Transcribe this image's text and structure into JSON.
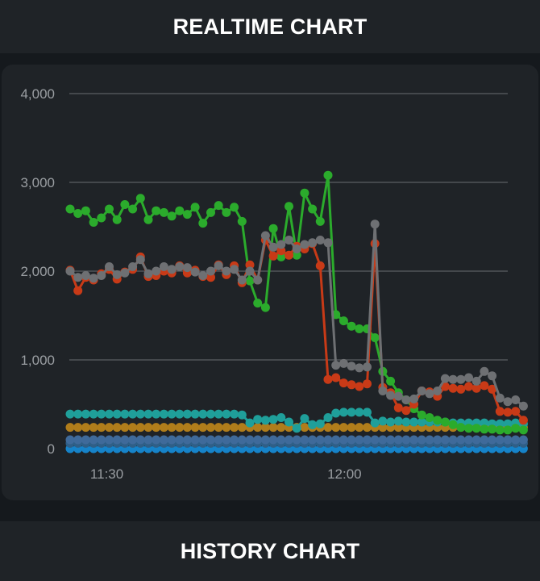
{
  "sections": {
    "realtime_title": "REALTIME CHART",
    "history_title": "HISTORY CHART"
  },
  "colors": {
    "background": "#15191d",
    "header": "#1f2327",
    "card": "#1f2327",
    "grid": "#5b5f63",
    "tick_text": "#9a9ea2"
  },
  "chart_data": {
    "type": "line",
    "ylim": [
      0,
      4000
    ],
    "yticks": [
      "0",
      "1,000",
      "2,000",
      "3,000",
      "4,000"
    ],
    "ytick_values": [
      0,
      1000,
      2000,
      3000,
      4000
    ],
    "xlim": [
      0,
      56
    ],
    "xticks": [
      {
        "label": "11:30",
        "index": 4.7
      },
      {
        "label": "12:00",
        "index": 35.1
      }
    ],
    "grid": true,
    "series": [
      {
        "color": "#6e7073",
        "values": [
          2000,
          1930,
          1950,
          1920,
          1950,
          2050,
          1960,
          1980,
          2050,
          2130,
          1970,
          2000,
          2050,
          2020,
          2050,
          2040,
          1990,
          1950,
          2000,
          2060,
          2000,
          2020,
          1900,
          2000,
          1900,
          2400,
          2270,
          2300,
          2350,
          2250,
          2300,
          2320,
          2350,
          2320,
          940,
          960,
          930,
          910,
          920,
          2530,
          650,
          600,
          590,
          550,
          560,
          650,
          620,
          650,
          790,
          780,
          780,
          800,
          760,
          870,
          820,
          570,
          530,
          550,
          480
        ]
      },
      {
        "color": "#c83a17",
        "values": [
          2010,
          1780,
          1930,
          1900,
          1970,
          2020,
          1910,
          1990,
          2020,
          2160,
          1940,
          1950,
          2000,
          1980,
          2060,
          1980,
          2010,
          1940,
          1930,
          2070,
          1960,
          2060,
          1870,
          2070,
          1900,
          2350,
          2170,
          2230,
          2180,
          2280,
          2250,
          2310,
          2060,
          780,
          800,
          740,
          720,
          700,
          730,
          2310,
          690,
          630,
          460,
          430,
          500,
          650,
          640,
          590,
          700,
          680,
          670,
          700,
          680,
          710,
          670,
          420,
          410,
          420,
          320
        ]
      },
      {
        "color": "#2bab2c",
        "values": [
          2700,
          2650,
          2680,
          2550,
          2600,
          2700,
          2580,
          2750,
          2700,
          2820,
          2580,
          2680,
          2660,
          2620,
          2680,
          2640,
          2720,
          2540,
          2660,
          2740,
          2660,
          2720,
          2560,
          1890,
          1640,
          1590,
          2480,
          2160,
          2730,
          2180,
          2880,
          2700,
          2560,
          3080,
          1510,
          1440,
          1380,
          1350,
          1350,
          1250,
          870,
          760,
          630,
          550,
          450,
          380,
          350,
          320,
          300,
          270,
          240,
          230,
          230,
          220,
          220,
          210,
          210,
          230,
          210
        ]
      },
      {
        "color": "#1f9f9a",
        "values": [
          390,
          390,
          390,
          390,
          390,
          390,
          390,
          390,
          390,
          390,
          390,
          390,
          390,
          390,
          390,
          390,
          390,
          390,
          390,
          390,
          390,
          390,
          380,
          290,
          330,
          320,
          330,
          350,
          300,
          230,
          340,
          270,
          280,
          350,
          400,
          410,
          410,
          410,
          410,
          290,
          310,
          300,
          310,
          300,
          300,
          300,
          300,
          300,
          300,
          290,
          290,
          290,
          290,
          290,
          280,
          280,
          280,
          290,
          280
        ]
      },
      {
        "color": "#b07d1b",
        "values": [
          240,
          240,
          240,
          240,
          240,
          240,
          240,
          240,
          240,
          240,
          240,
          240,
          240,
          240,
          240,
          240,
          240,
          240,
          240,
          240,
          240,
          240,
          240,
          240,
          240,
          240,
          240,
          240,
          240,
          240,
          240,
          240,
          240,
          240,
          240,
          240,
          240,
          240,
          240,
          240,
          240,
          240,
          240,
          240,
          240,
          240,
          240,
          240,
          240,
          240,
          240,
          240,
          240,
          240,
          240,
          240,
          240,
          240,
          240
        ]
      },
      {
        "color": "#3f6a9a",
        "values": [
          100,
          100,
          100,
          100,
          100,
          100,
          100,
          100,
          100,
          100,
          100,
          100,
          100,
          100,
          100,
          100,
          100,
          100,
          100,
          100,
          100,
          100,
          100,
          100,
          100,
          100,
          100,
          100,
          100,
          100,
          100,
          100,
          100,
          100,
          100,
          100,
          100,
          100,
          100,
          100,
          100,
          100,
          100,
          100,
          100,
          100,
          100,
          100,
          100,
          100,
          100,
          100,
          100,
          100,
          100,
          100,
          100,
          100,
          100
        ]
      },
      {
        "color": "#2f5f87",
        "values": [
          60,
          60,
          60,
          60,
          60,
          60,
          60,
          60,
          60,
          60,
          60,
          60,
          60,
          60,
          60,
          60,
          60,
          60,
          60,
          60,
          60,
          60,
          60,
          60,
          60,
          60,
          60,
          60,
          60,
          60,
          60,
          60,
          60,
          60,
          60,
          60,
          60,
          60,
          60,
          60,
          60,
          60,
          60,
          60,
          60,
          60,
          60,
          60,
          60,
          60,
          60,
          60,
          60,
          60,
          60,
          60,
          60,
          60,
          60
        ]
      },
      {
        "color": "#1683c9",
        "values": [
          0,
          0,
          0,
          0,
          0,
          0,
          0,
          0,
          0,
          0,
          0,
          0,
          0,
          0,
          0,
          0,
          0,
          0,
          0,
          0,
          0,
          0,
          0,
          0,
          0,
          0,
          0,
          0,
          0,
          0,
          0,
          0,
          0,
          0,
          0,
          0,
          0,
          0,
          0,
          0,
          0,
          0,
          0,
          0,
          0,
          0,
          0,
          0,
          0,
          0,
          0,
          0,
          0,
          0,
          0,
          0,
          0,
          0,
          0
        ]
      }
    ]
  }
}
